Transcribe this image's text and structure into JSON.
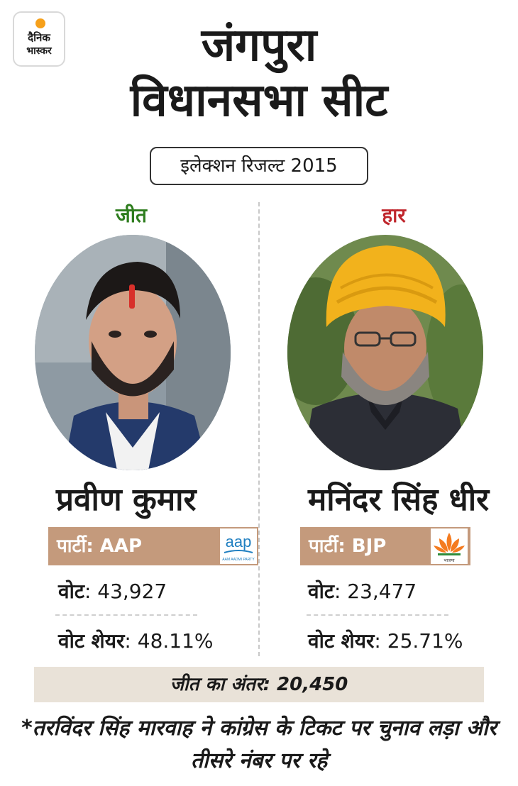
{
  "brand": {
    "line1": "दैनिक",
    "line2": "भास्कर"
  },
  "title": {
    "line1": "जंगपुरा",
    "line2": "विधानसभा सीट"
  },
  "election_label": "इलेक्शन रिजल्ट 2015",
  "candidates": [
    {
      "status": "जीत",
      "name": "प्रवीण कुमार",
      "party": "पार्टी: AAP",
      "party_logo_text": "aap",
      "party_logo_subtext": "AAM AADMI PARTY",
      "votes_label": "वोट",
      "votes": ": 43,927",
      "share_label": "वोट शेयर",
      "share": ": 48.11%"
    },
    {
      "status": "हार",
      "name": "मनिंदर सिंह धीर",
      "party": "पार्टी: BJP",
      "party_logo_subtext": "भाजपा",
      "votes_label": "वोट",
      "votes": ": 23,477",
      "share_label": "वोट शेयर",
      "share": ": 25.71%"
    }
  ],
  "margin": "जीत का अंतर: 20,450",
  "footnote": "*तरविंदर सिंह मारवाह ने कांग्रेस के टिकट पर चुनाव लड़ा और तीसरे नंबर पर रहे",
  "colors": {
    "win": "#2e7d1e",
    "lose": "#c0272d",
    "party_bar": "#c49a7c",
    "margin_bar": "#e9e2d8",
    "aap_blue": "#1f7fc1",
    "bjp_saffron": "#f47b20"
  }
}
